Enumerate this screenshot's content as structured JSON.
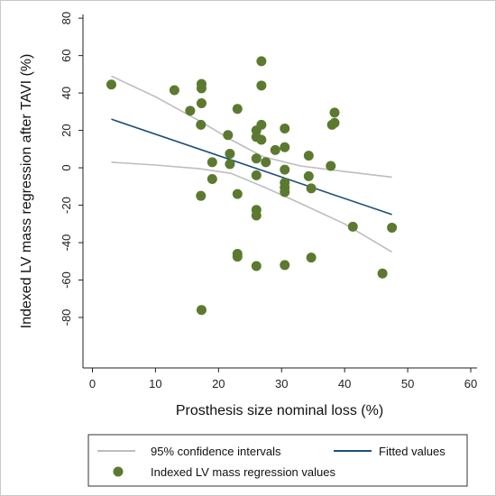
{
  "chart_data": {
    "type": "scatter",
    "xlabel": "Prosthesis size nominal loss (%)",
    "ylabel": "Indexed LV mass regression after TAVI (%)",
    "xlim": [
      -1.5,
      61
    ],
    "ylim": [
      -107,
      82
    ],
    "x_ticks": [
      0,
      10,
      20,
      30,
      40,
      50,
      60
    ],
    "y_ticks": [
      80,
      60,
      40,
      20,
      0,
      -20,
      -40,
      -60,
      -80
    ],
    "grid": false,
    "legend_position": "bottom",
    "colors": {
      "points": "#5b7a2f",
      "fit": "#1f4e79",
      "ci": "#bdbdbd"
    },
    "series": [
      {
        "name": "Indexed LV mass regression values",
        "type": "scatter",
        "points": [
          [
            3,
            44.5
          ],
          [
            13,
            41.5
          ],
          [
            15.5,
            30.5
          ],
          [
            17.3,
            44.8
          ],
          [
            17.3,
            42.5
          ],
          [
            17.3,
            34.5
          ],
          [
            17.2,
            23
          ],
          [
            17.2,
            -15
          ],
          [
            17.3,
            -76
          ],
          [
            19,
            3
          ],
          [
            19,
            -6
          ],
          [
            21.5,
            17.5
          ],
          [
            21.8,
            7.5
          ],
          [
            21.8,
            2
          ],
          [
            23,
            31.5
          ],
          [
            23,
            -14
          ],
          [
            23,
            -46
          ],
          [
            23,
            -47.5
          ],
          [
            26,
            20
          ],
          [
            26,
            16.5
          ],
          [
            26,
            5
          ],
          [
            26,
            -4
          ],
          [
            26,
            -22.5
          ],
          [
            26,
            -25.5
          ],
          [
            26,
            -52.5
          ],
          [
            26.8,
            57
          ],
          [
            26.8,
            44
          ],
          [
            26.8,
            23
          ],
          [
            26.8,
            15
          ],
          [
            27.5,
            3
          ],
          [
            29,
            9.5
          ],
          [
            30.5,
            21
          ],
          [
            30.5,
            11
          ],
          [
            30.5,
            -1
          ],
          [
            30.5,
            -8
          ],
          [
            30.5,
            -10.5
          ],
          [
            30.5,
            -13
          ],
          [
            30.5,
            -52
          ],
          [
            34.3,
            6.5
          ],
          [
            34.3,
            -4.5
          ],
          [
            34.7,
            -11
          ],
          [
            34.7,
            -48
          ],
          [
            37.8,
            1
          ],
          [
            38,
            23
          ],
          [
            38.4,
            29.5
          ],
          [
            38.4,
            24
          ],
          [
            41.3,
            -31.5
          ],
          [
            46,
            -56.5
          ],
          [
            47.5,
            -32
          ]
        ]
      },
      {
        "name": "Fitted values",
        "type": "line",
        "points": [
          [
            3,
            26
          ],
          [
            47.5,
            -25
          ]
        ]
      },
      {
        "name": "95% confidence intervals",
        "type": "line",
        "upper": [
          [
            3,
            49
          ],
          [
            10,
            38
          ],
          [
            17,
            25
          ],
          [
            22,
            15
          ],
          [
            27,
            6
          ],
          [
            33,
            1
          ],
          [
            40,
            -2
          ],
          [
            47.5,
            -5
          ]
        ],
        "lower": [
          [
            3,
            3
          ],
          [
            10,
            1.5
          ],
          [
            17,
            -0.5
          ],
          [
            22,
            -3
          ],
          [
            27,
            -10
          ],
          [
            33,
            -19
          ],
          [
            40,
            -30
          ],
          [
            47.5,
            -45
          ]
        ]
      }
    ],
    "legend": {
      "ci_label": "95% confidence intervals",
      "fit_label": "Fitted values",
      "points_label": "Indexed LV mass regression values"
    }
  }
}
